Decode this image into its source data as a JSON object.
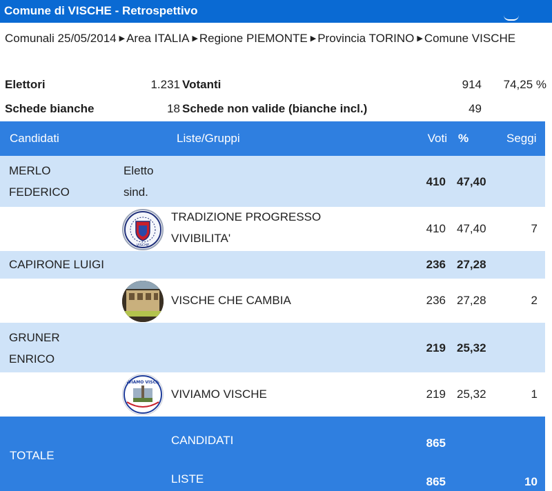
{
  "header": {
    "title": "Comune di VISCHE - Retrospettivo"
  },
  "breadcrumb": {
    "items": [
      "Comunali 25/05/2014",
      "Area ITALIA",
      "Regione PIEMONTE",
      "Provincia TORINO",
      "Comune VISCHE"
    ],
    "separator_icon": "triangle-right-icon"
  },
  "stats": {
    "elettori_label": "Elettori",
    "elettori_value": "1.231",
    "votanti_label": "Votanti",
    "votanti_value": "914",
    "votanti_pct": "74,25 %",
    "bianche_label": "Schede bianche",
    "bianche_value": "18",
    "nonvalide_label": "Schede non valide (bianche incl.)",
    "nonvalide_value": "49"
  },
  "table": {
    "headers": {
      "candidati": "Candidati",
      "liste": "Liste/Gruppi",
      "voti": "Voti",
      "pct": "%",
      "seggi": "Seggi"
    },
    "rows": [
      {
        "kind": "candidate",
        "name": "MERLO FEDERICO",
        "note": "Eletto sind.",
        "voti": "410",
        "pct": "47,40"
      },
      {
        "kind": "list",
        "logo": "tradizione-progresso-logo",
        "name": "TRADIZIONE PROGRESSO VIVIBILITA'",
        "voti": "410",
        "pct": "47,40",
        "seggi": "7"
      },
      {
        "kind": "candidate",
        "name": "CAPIRONE LUIGI",
        "voti": "236",
        "pct": "27,28"
      },
      {
        "kind": "list",
        "logo": "vische-che-cambia-logo",
        "name": "VISCHE CHE CAMBIA",
        "voti": "236",
        "pct": "27,28",
        "seggi": "2"
      },
      {
        "kind": "candidate",
        "name": "GRUNER ENRICO",
        "voti": "219",
        "pct": "25,32"
      },
      {
        "kind": "list",
        "logo": "viviamo-vische-logo",
        "name": "VIVIAMO VISCHE",
        "voti": "219",
        "pct": "25,32",
        "seggi": "1"
      }
    ],
    "total": {
      "label": "TOTALE",
      "candidati_label": "CANDIDATI",
      "candidati_voti": "865",
      "liste_label": "LISTE",
      "liste_voti": "865",
      "seggi": "10"
    }
  },
  "logo_texts": {
    "tradizione": "VISCHE",
    "viviamo": "VIVIAMO VISCHE"
  },
  "colors": {
    "header_blue": "#0a6ad3",
    "table_blue": "#2f7fe0",
    "candidate_row": "#cfe3f8"
  }
}
